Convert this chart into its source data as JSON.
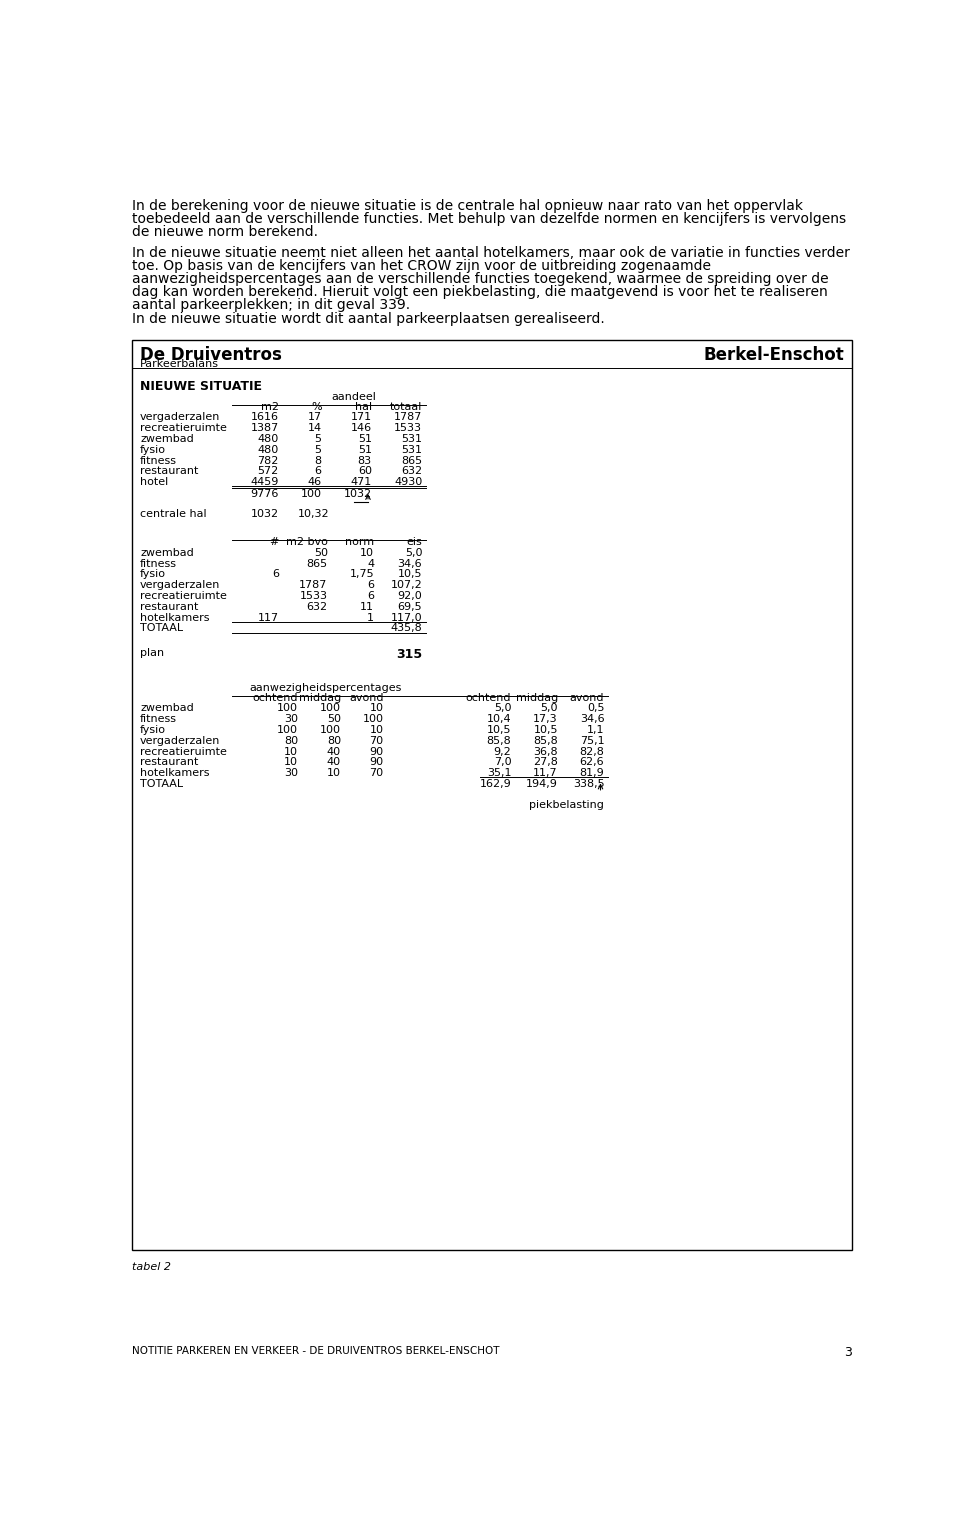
{
  "intro_text_para1": [
    "In de berekening voor de nieuwe situatie is de centrale hal opnieuw naar rato van het oppervlak",
    "toebedeeld aan de verschillende functies. Met behulp van dezelfde normen en kencijfers is vervolgens",
    "de nieuwe norm berekend."
  ],
  "intro_text_para2": [
    "In de nieuwe situatie neemt niet alleen het aantal hotelkamers, maar ook de variatie in functies verder",
    "toe. Op basis van de kencijfers van het CROW zijn voor de uitbreiding zogenaamde",
    "aanwezigheidspercentages aan de verschillende functies toegekend, waarmee de spreiding over de",
    "dag kan worden berekend. Hieruit volgt een piekbelasting, die maatgevend is voor het te realiseren",
    "aantal parkeerplekken; in dit geval 339.",
    "In de nieuwe situatie wordt dit aantal parkeerplaatsen gerealiseerd."
  ],
  "box_title_left": "De Druiventros",
  "box_title_right": "Berkel-Enschot",
  "box_subtitle": "Parkeerbalans",
  "section1_title": "NIEUWE SITUATIE",
  "section1_header_label": "aandeel",
  "section1_cols": [
    "m2",
    "%",
    "hal",
    "totaal"
  ],
  "section1_rows": [
    [
      "vergaderzalen",
      "1616",
      "17",
      "171",
      "1787"
    ],
    [
      "recreatieruimte",
      "1387",
      "14",
      "146",
      "1533"
    ],
    [
      "zwembad",
      "480",
      "5",
      "51",
      "531"
    ],
    [
      "fysio",
      "480",
      "5",
      "51",
      "531"
    ],
    [
      "fitness",
      "782",
      "8",
      "83",
      "865"
    ],
    [
      "restaurant",
      "572",
      "6",
      "60",
      "632"
    ],
    [
      "hotel",
      "4459",
      "46",
      "471",
      "4930"
    ]
  ],
  "section1_total": [
    "9776",
    "100",
    "1032"
  ],
  "section1_centrale_hal": [
    "centrale hal",
    "1032",
    "10,32"
  ],
  "section2_cols": [
    "#",
    "m2 bvo",
    "norm",
    "eis"
  ],
  "section2_rows": [
    [
      "zwembad",
      "",
      "50",
      "10",
      "5,0"
    ],
    [
      "fitness",
      "",
      "865",
      "4",
      "34,6"
    ],
    [
      "fysio",
      "6",
      "",
      "1,75",
      "10,5"
    ],
    [
      "vergaderzalen",
      "",
      "1787",
      "6",
      "107,2"
    ],
    [
      "recreatieruimte",
      "",
      "1533",
      "6",
      "92,0"
    ],
    [
      "restaurant",
      "",
      "632",
      "11",
      "69,5"
    ],
    [
      "hotelkamers",
      "117",
      "",
      "1",
      "117,0"
    ]
  ],
  "section2_total": "435,8",
  "section2_plan": "315",
  "section3_header1": "aanwezigheidspercentages",
  "section3_cols1": [
    "ochtend",
    "middag",
    "avond"
  ],
  "section3_cols2": [
    "ochtend",
    "middag",
    "avond"
  ],
  "section3_rows": [
    [
      "zwembad",
      "100",
      "100",
      "10",
      "5,0",
      "5,0",
      "0,5"
    ],
    [
      "fitness",
      "30",
      "50",
      "100",
      "10,4",
      "17,3",
      "34,6"
    ],
    [
      "fysio",
      "100",
      "100",
      "10",
      "10,5",
      "10,5",
      "1,1"
    ],
    [
      "vergaderzalen",
      "80",
      "80",
      "70",
      "85,8",
      "85,8",
      "75,1"
    ],
    [
      "recreatieruimte",
      "10",
      "40",
      "90",
      "9,2",
      "36,8",
      "82,8"
    ],
    [
      "restaurant",
      "10",
      "40",
      "90",
      "7,0",
      "27,8",
      "62,6"
    ],
    [
      "hotelkamers",
      "30",
      "10",
      "70",
      "35,1",
      "11,7",
      "81,9"
    ]
  ],
  "section3_total": [
    "162,9",
    "194,9",
    "338,5"
  ],
  "section3_piekbelasting": "piekbelasting",
  "caption": "tabel 2",
  "footer": "NOTITIE PARKEREN EN VERKEER - DE DRUIVENTROS BERKEL-ENSCHOT",
  "page_number": "3",
  "bg_color": "#ffffff",
  "text_color": "#000000"
}
